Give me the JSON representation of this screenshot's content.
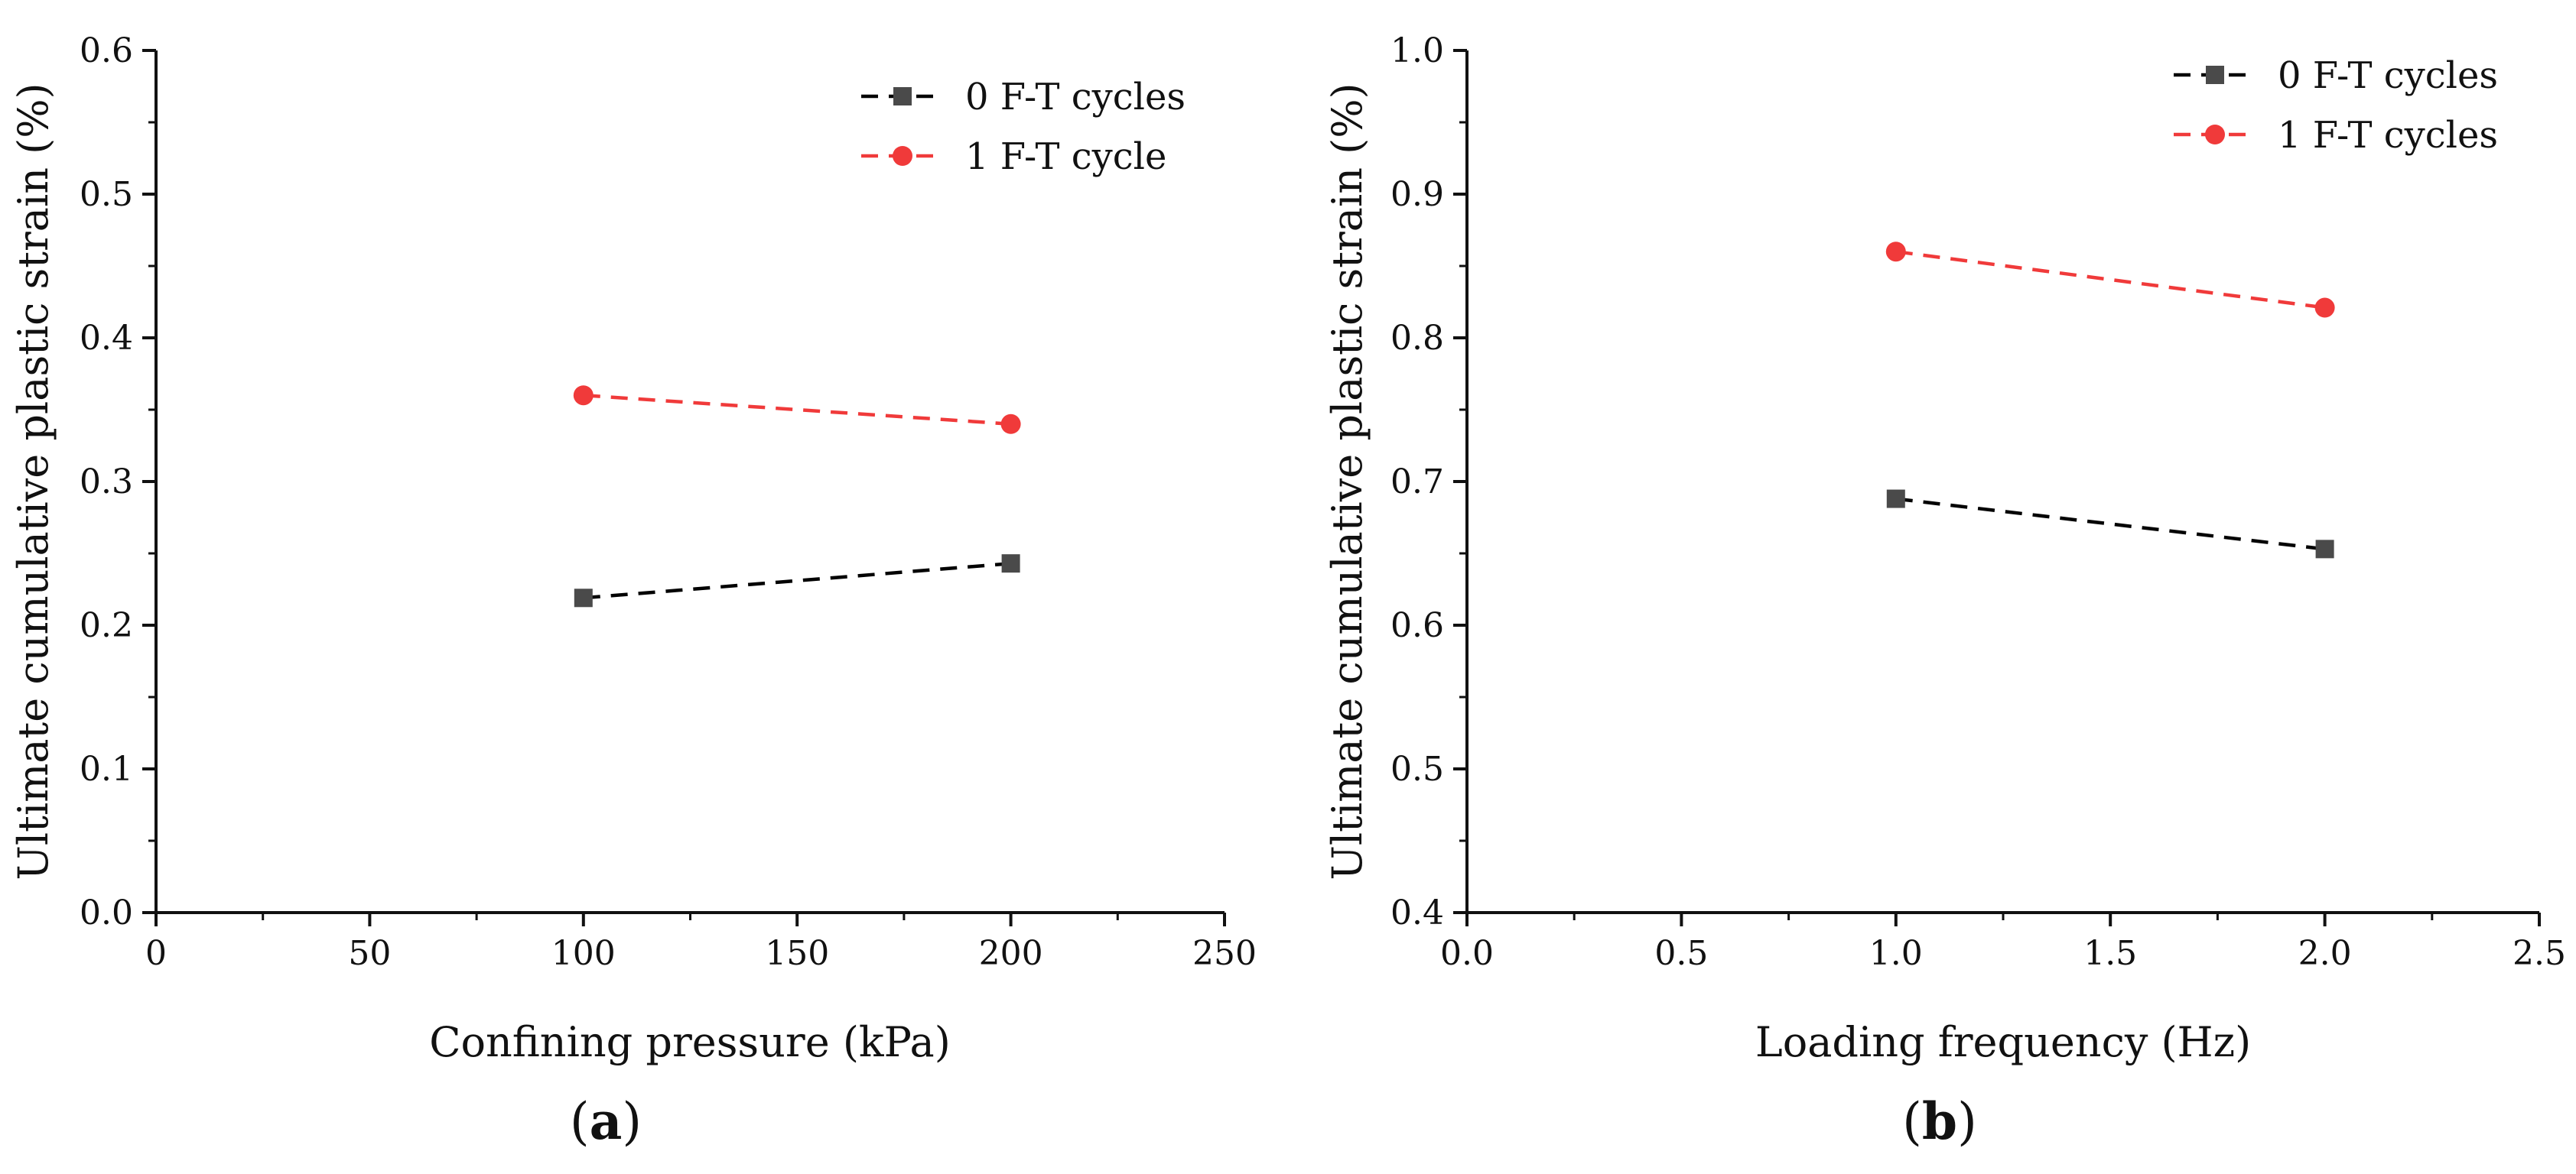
{
  "chart_data": [
    {
      "type": "line",
      "panel_label": "a",
      "xlabel": "Confining pressure (kPa)",
      "ylabel": "Ultimate cumulative plastic strain (%)",
      "xlim": [
        0,
        250
      ],
      "ylim": [
        0.0,
        0.6
      ],
      "x_ticks": [
        "0",
        "50",
        "100",
        "150",
        "200",
        "250"
      ],
      "y_ticks": [
        "0.0",
        "0.1",
        "0.2",
        "0.3",
        "0.4",
        "0.5",
        "0.6"
      ],
      "legend_position": "top-right",
      "series": [
        {
          "name": "0 F-T cycles",
          "color": "#000000",
          "marker": "square",
          "marker_color": "#4a4a4a",
          "x": [
            100,
            200
          ],
          "values": [
            0.219,
            0.243
          ]
        },
        {
          "name": "1 F-T cycle",
          "color": "#f03a3a",
          "marker": "circle",
          "marker_color": "#f03a3a",
          "x": [
            100,
            200
          ],
          "values": [
            0.36,
            0.34
          ]
        }
      ]
    },
    {
      "type": "line",
      "panel_label": "b",
      "xlabel": "Loading frequency (Hz)",
      "ylabel": "Ultimate cumulative plastic strain (%)",
      "xlim": [
        0.0,
        2.5
      ],
      "ylim": [
        0.4,
        1.0
      ],
      "x_ticks": [
        "0.0",
        "0.5",
        "1.0",
        "1.5",
        "2.0",
        "2.5"
      ],
      "y_ticks": [
        "0.4",
        "0.5",
        "0.6",
        "0.7",
        "0.8",
        "0.9",
        "1.0"
      ],
      "legend_position": "top-right",
      "series": [
        {
          "name": "0 F-T cycles",
          "color": "#000000",
          "marker": "square",
          "marker_color": "#4a4a4a",
          "x": [
            1.0,
            2.0
          ],
          "values": [
            0.688,
            0.653
          ]
        },
        {
          "name": "1 F-T cycles",
          "color": "#f03a3a",
          "marker": "circle",
          "marker_color": "#f03a3a",
          "x": [
            1.0,
            2.0
          ],
          "values": [
            0.86,
            0.821
          ]
        }
      ]
    }
  ]
}
